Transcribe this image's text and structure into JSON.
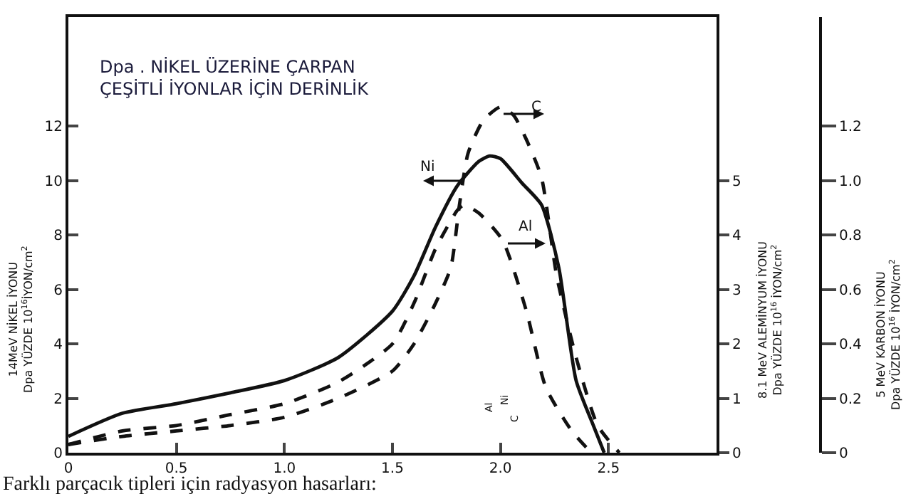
{
  "chart_data": {
    "type": "line",
    "title": "Dpa . NİKEL ÜZERİNE ÇARPAN\nÇEŞİTLİ İYONLAR İÇİN DERİNLİK",
    "ylabel": "14MeV NİKEL İYONU\nDpa YÜZDE 10$^{16}$İYON/cm$^{2}$",
    "y2label": "8.1 MeV ALEMİNYUM İYONU\nDpa YÜZDE 10$^{16}$ İYON/cm$^{2}$",
    "y3label": "5 MeV KARBON İYONU\nDpa YÜZDE 10$^{16}$ İYON/cm$^{2}$",
    "xlim": [
      0,
      3
    ],
    "xticks": [
      0,
      {
        "value": 0.5,
        "label": "0.5"
      },
      {
        "value": 1,
        "label": "1.0"
      },
      {
        "value": 1.5,
        "label": "1.5"
      },
      {
        "value": 2,
        "label": "2.0"
      },
      {
        "value": 2.5,
        "label": "2.5"
      }
    ],
    "ylim": [
      0,
      16
    ],
    "yticks": [
      0,
      2,
      4,
      6,
      8,
      10,
      12
    ],
    "y2lim": [
      0,
      8
    ],
    "y2ticks": [
      0,
      1,
      2,
      3,
      4,
      5
    ],
    "y3lim": [
      0,
      1.6
    ],
    "y3ticks": [
      0,
      {
        "value": 0.2,
        "label": "0.2"
      },
      {
        "value": 0.4,
        "label": "0.4"
      },
      {
        "value": 0.6,
        "label": "0.6"
      },
      {
        "value": 0.8,
        "label": "0.8"
      },
      {
        "value": 1,
        "label": "1.0"
      },
      {
        "value": 1.2,
        "label": "1.2"
      }
    ],
    "grid": false,
    "marker": "none",
    "series": [
      {
        "color": "#111111",
        "line_style": "solid",
        "x": [
          0,
          0.25,
          0.5,
          0.75,
          1,
          1.25,
          1.5,
          1.6,
          1.7,
          1.8,
          1.9,
          1.95,
          2,
          2.1,
          2.19,
          2.27,
          2.35,
          2.43,
          2.48
        ],
        "values": [
          0.6,
          1.45,
          1.8,
          2.2,
          2.65,
          3.5,
          5.2,
          6.5,
          8.3,
          9.8,
          10.7,
          10.9,
          10.8,
          9.9,
          9.1,
          6.8,
          2.65,
          1,
          0
        ]
      },
      {
        "axis": "y2",
        "color": "#111111",
        "line_style": "dashed",
        "x": [
          0,
          0.25,
          0.5,
          0.75,
          1,
          1.25,
          1.5,
          1.6,
          1.7,
          1.8,
          1.83,
          1.9,
          2.01,
          2.12,
          2.21,
          2.33,
          2.42
        ],
        "values": [
          0.15,
          0.4,
          0.5,
          0.7,
          0.9,
          1.3,
          2,
          2.75,
          3.75,
          4.45,
          4.55,
          4.4,
          3.9,
          2.6,
          1.2,
          0.4,
          0
        ]
      },
      {
        "axis": "y3",
        "color": "#111111",
        "line_style": "dashed",
        "x": [
          0,
          0.25,
          0.5,
          0.75,
          1,
          1.25,
          1.5,
          1.6,
          1.7,
          1.77,
          1.81,
          1.85,
          1.92,
          2,
          2.06,
          2.12,
          2.19,
          2.26,
          2.35,
          2.45,
          2.55
        ],
        "values": [
          0.03,
          0.06,
          0.08,
          0.1,
          0.13,
          0.2,
          0.3,
          0.4,
          0.55,
          0.68,
          0.91,
          1.1,
          1.22,
          1.27,
          1.24,
          1.15,
          1.01,
          0.65,
          0.35,
          0.1,
          0
        ]
      }
    ],
    "annotations": [
      "Ni",
      "C",
      "Al",
      "Al",
      "Ni",
      "C",
      "Farklı parçacık tipleri için radyasyon hasarları:"
    ]
  }
}
